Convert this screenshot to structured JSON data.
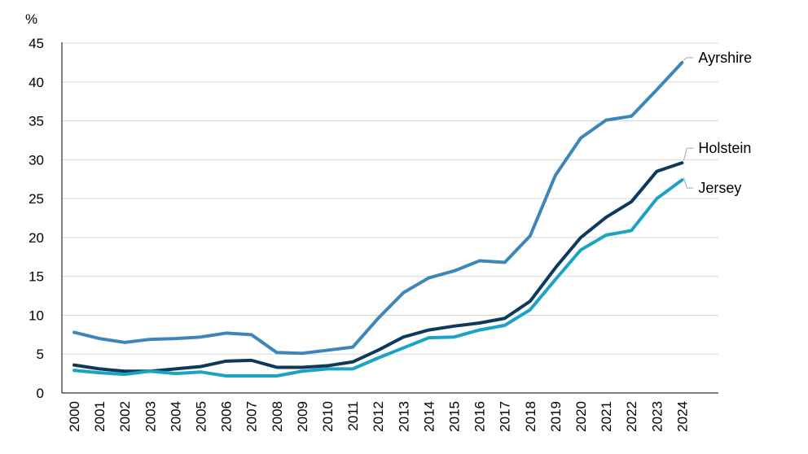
{
  "chart_data": {
    "type": "line",
    "title": "",
    "xlabel": "",
    "ylabel": "%",
    "ylim": [
      0,
      45
    ],
    "yticks": [
      0,
      5,
      10,
      15,
      20,
      25,
      30,
      35,
      40,
      45
    ],
    "grid": "horizontal",
    "legend": "direct labels at line ends (right)",
    "x": [
      "2000",
      "2001",
      "2002",
      "2003",
      "2004",
      "2005",
      "2006",
      "2007",
      "2008",
      "2009",
      "2010",
      "2011",
      "2012",
      "2013",
      "2014",
      "2015",
      "2016",
      "2017",
      "2018",
      "2019",
      "2020",
      "2021",
      "2022",
      "2023",
      "2024"
    ],
    "series": [
      {
        "name": "Ayrshire",
        "color": "#3f86b8",
        "values": [
          7.8,
          7.0,
          6.5,
          6.9,
          7.0,
          7.2,
          7.7,
          7.5,
          5.2,
          5.1,
          5.5,
          5.9,
          9.6,
          12.9,
          14.8,
          15.7,
          17.0,
          16.8,
          20.2,
          28.0,
          32.8,
          35.1,
          35.6,
          39.0,
          42.5
        ]
      },
      {
        "name": "Holstein",
        "color": "#0d3a5c",
        "values": [
          3.6,
          3.1,
          2.8,
          2.8,
          3.1,
          3.4,
          4.1,
          4.2,
          3.3,
          3.3,
          3.5,
          4.0,
          5.5,
          7.2,
          8.1,
          8.6,
          9.0,
          9.6,
          11.8,
          16.1,
          20.0,
          22.6,
          24.6,
          28.5,
          29.6
        ]
      },
      {
        "name": "Jersey",
        "color": "#1aa3c4",
        "values": [
          2.9,
          2.6,
          2.4,
          2.8,
          2.5,
          2.7,
          2.2,
          2.2,
          2.2,
          2.8,
          3.1,
          3.1,
          4.5,
          5.8,
          7.1,
          7.2,
          8.1,
          8.7,
          10.7,
          14.6,
          18.4,
          20.3,
          20.9,
          25.0,
          27.4
        ]
      }
    ]
  }
}
